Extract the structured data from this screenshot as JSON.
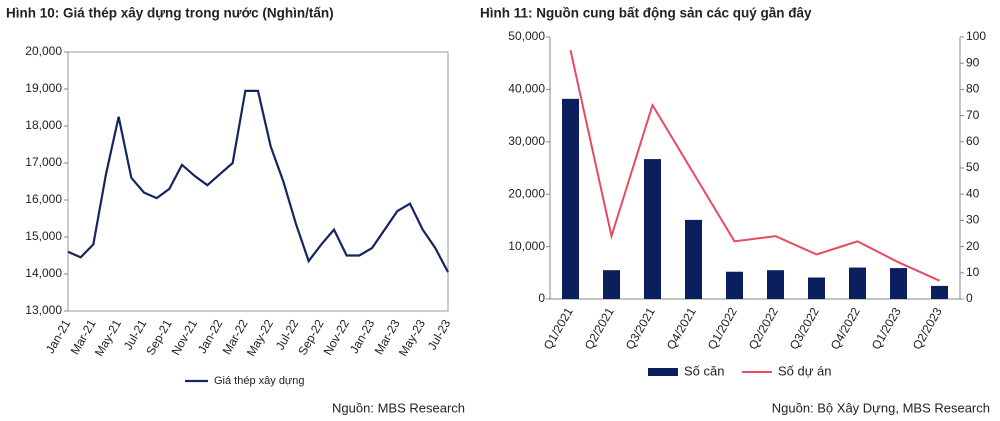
{
  "chart_data": [
    {
      "type": "line",
      "title": "Hình 10: Giá thép xây dựng trong nước (Nghìn/tấn)",
      "source": "Nguồn: MBS Research",
      "categories": [
        "Jan-21",
        null,
        "Mar-21",
        null,
        "May-21",
        null,
        "Jul-21",
        null,
        "Sep-21",
        null,
        "Nov-21",
        null,
        "Jan-22",
        null,
        "Mar-22",
        null,
        "May-22",
        null,
        "Jul-22",
        null,
        "Sep-22",
        null,
        "Nov-22",
        null,
        "Jan-23",
        null,
        "Mar-23",
        null,
        "May-23",
        null,
        "Jul-23"
      ],
      "series": [
        {
          "name": "Giá thép xây dựng",
          "color": "#15255e",
          "values": [
            14600,
            14450,
            14800,
            16700,
            18250,
            16600,
            16200,
            16050,
            16300,
            16950,
            16650,
            16400,
            16700,
            17000,
            18950,
            18950,
            17450,
            16500,
            15350,
            14350,
            14800,
            15200,
            14500,
            14500,
            14700,
            15200,
            15700,
            15900,
            15200,
            14700,
            14050
          ]
        }
      ],
      "ylim": [
        13000,
        20000
      ],
      "yticks": [
        {
          "value": 13000,
          "label": "13,000"
        },
        {
          "value": 14000,
          "label": "14,000"
        },
        {
          "value": 15000,
          "label": "15,000"
        },
        {
          "value": 16000,
          "label": "16,000"
        },
        {
          "value": 17000,
          "label": "17,000"
        },
        {
          "value": 18000,
          "label": "18,000"
        },
        {
          "value": 19000,
          "label": "19,000"
        },
        {
          "value": 20000,
          "label": "20,000"
        }
      ],
      "legend": "bottom"
    },
    {
      "type": "combo",
      "title": "Hình 11: Nguồn cung bất động sản các quý gần đây",
      "source": "Nguồn: Bộ Xây Dựng, MBS Research",
      "categories": [
        "Q1/2021",
        "Q2/2021",
        "Q3/2021",
        "Q4/2021",
        "Q1/2022",
        "Q2/2022",
        "Q3/2022",
        "Q4/2022",
        "Q1/2023",
        "Q2/2023"
      ],
      "series": [
        {
          "name": "Số căn",
          "type": "bar",
          "color": "#0b1f5e",
          "values": [
            38200,
            5500,
            26700,
            15100,
            5200,
            5500,
            4100,
            6000,
            5900,
            2500
          ]
        },
        {
          "name": "Số dự án",
          "type": "line",
          "axis": "y2",
          "color": "#e84a62",
          "values": [
            95,
            24,
            74,
            48,
            22,
            24,
            17,
            22,
            14,
            7
          ]
        }
      ],
      "ylim": [
        0,
        50000
      ],
      "yticks": [
        0,
        {
          "value": 10000,
          "label": "10,000"
        },
        {
          "value": 20000,
          "label": "20,000"
        },
        {
          "value": 30000,
          "label": "30,000"
        },
        {
          "value": 40000,
          "label": "40,000"
        },
        {
          "value": 50000,
          "label": "50,000"
        }
      ],
      "y2lim": [
        0,
        100
      ],
      "y2ticks": [
        0,
        10,
        20,
        30,
        40,
        50,
        60,
        70,
        80,
        90,
        100
      ],
      "legend": "bottom"
    }
  ]
}
